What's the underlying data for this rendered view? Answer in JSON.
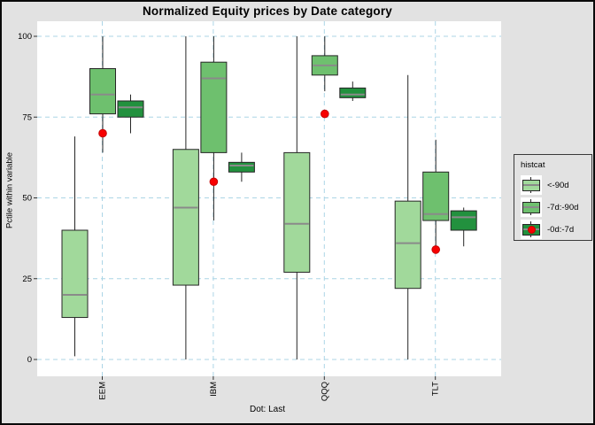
{
  "chart_data": {
    "type": "boxplot",
    "title": "Normalized Equity prices by Date category",
    "ylabel": "Pctile within variable",
    "caption": "Dot: Last",
    "categories": [
      "EEM",
      "IBM",
      "QQQ",
      "TLT"
    ],
    "ylim": [
      0,
      100
    ],
    "yticks": [
      0,
      25,
      50,
      75,
      100
    ],
    "grid": {
      "style": "dashed",
      "color": "#ACD5E6"
    },
    "legend": {
      "title": "histcat",
      "position": "right"
    },
    "panel_bg": "#FFFFFF",
    "figure_bg": "#E2E2E2",
    "series": [
      {
        "name": "<-90d",
        "color": "#A1D99B",
        "boxes": [
          {
            "lo": 1,
            "q1": 13,
            "med": 20,
            "q3": 40,
            "hi": 69
          },
          {
            "lo": 0,
            "q1": 23,
            "med": 47,
            "q3": 65,
            "hi": 100
          },
          {
            "lo": 0,
            "q1": 27,
            "med": 42,
            "q3": 64,
            "hi": 100
          },
          {
            "lo": 0,
            "q1": 22,
            "med": 36,
            "q3": 49,
            "hi": 88
          }
        ]
      },
      {
        "name": "-7d:-90d",
        "color": "#6EC06E",
        "boxes": [
          {
            "lo": 64,
            "q1": 76,
            "med": 82,
            "q3": 90,
            "hi": 100
          },
          {
            "lo": 43,
            "q1": 64,
            "med": 87,
            "q3": 92,
            "hi": 100
          },
          {
            "lo": 83,
            "q1": 88,
            "med": 91,
            "q3": 94,
            "hi": 100
          },
          {
            "lo": 35,
            "q1": 43,
            "med": 45,
            "q3": 58,
            "hi": 68
          }
        ]
      },
      {
        "name": "-0d:-7d",
        "color": "#22913E",
        "boxes": [
          {
            "lo": 70,
            "q1": 75,
            "med": 78,
            "q3": 80,
            "hi": 82
          },
          {
            "lo": 55,
            "q1": 58,
            "med": 60,
            "q3": 61,
            "hi": 64
          },
          {
            "lo": 80,
            "q1": 81,
            "med": 82,
            "q3": 84,
            "hi": 86
          },
          {
            "lo": 35,
            "q1": 40,
            "med": 44,
            "q3": 46,
            "hi": 47
          }
        ]
      }
    ],
    "dots": {
      "name": "Last",
      "color": "#F80000",
      "edge_color": "#C40000",
      "values": [
        70,
        55,
        76,
        34
      ]
    },
    "style": {
      "box_border": "#262626",
      "median_color": "#8A8A8A",
      "tick_color": "#333333",
      "text_color": "#000000"
    }
  }
}
